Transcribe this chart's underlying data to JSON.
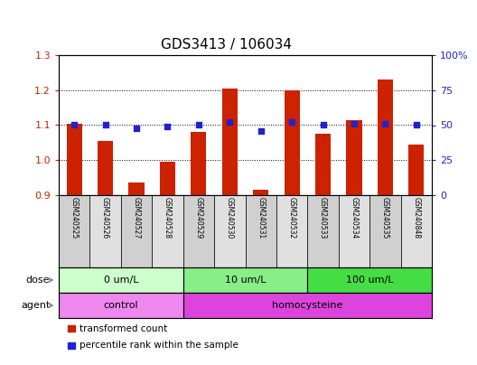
{
  "title": "GDS3413 / 106034",
  "samples": [
    "GSM240525",
    "GSM240526",
    "GSM240527",
    "GSM240528",
    "GSM240529",
    "GSM240530",
    "GSM240531",
    "GSM240532",
    "GSM240533",
    "GSM240534",
    "GSM240535",
    "GSM240848"
  ],
  "transformed_count": [
    1.105,
    1.055,
    0.935,
    0.995,
    1.08,
    1.205,
    0.915,
    1.2,
    1.075,
    1.115,
    1.23,
    1.045
  ],
  "percentile_rank": [
    50,
    50,
    48,
    49,
    50,
    52,
    46,
    52,
    50,
    51,
    51,
    50
  ],
  "ylim_left": [
    0.9,
    1.3
  ],
  "ylim_right": [
    0,
    100
  ],
  "yticks_left": [
    0.9,
    1.0,
    1.1,
    1.2,
    1.3
  ],
  "yticks_right": [
    0,
    25,
    50,
    75,
    100
  ],
  "bar_color": "#cc2200",
  "dot_color": "#2222cc",
  "bar_width": 0.5,
  "dot_size": 25,
  "gridlines": [
    1.0,
    1.1,
    1.2
  ],
  "dose_groups": [
    {
      "label": "0 um/L",
      "start": 0,
      "end": 3,
      "color": "#ccffcc"
    },
    {
      "label": "10 um/L",
      "start": 4,
      "end": 7,
      "color": "#88ee88"
    },
    {
      "label": "100 um/L",
      "start": 8,
      "end": 11,
      "color": "#44dd44"
    }
  ],
  "agent_groups": [
    {
      "label": "control",
      "start": 0,
      "end": 3,
      "color": "#ee88ee"
    },
    {
      "label": "homocysteine",
      "start": 4,
      "end": 11,
      "color": "#dd44dd"
    }
  ],
  "legend_items": [
    {
      "label": "transformed count",
      "color": "#cc2200"
    },
    {
      "label": "percentile rank within the sample",
      "color": "#2222cc"
    }
  ],
  "dose_label": "dose",
  "agent_label": "agent",
  "bg_color": "#ffffff",
  "axis_color_left": "#cc2200",
  "axis_color_right": "#2222cc",
  "label_fontsize": 8,
  "tick_fontsize": 8,
  "title_fontsize": 11
}
